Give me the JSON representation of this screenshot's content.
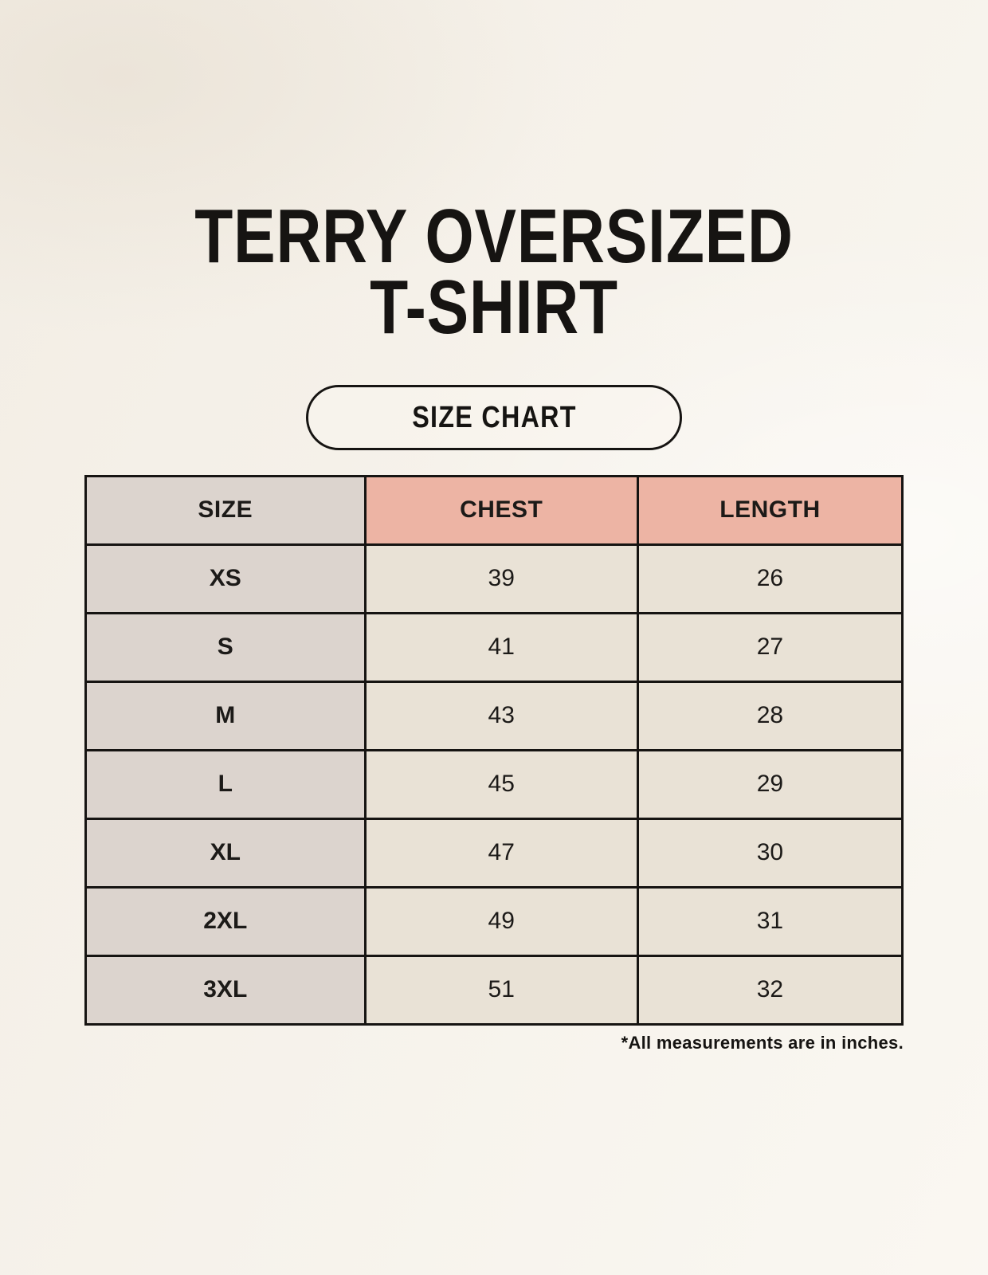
{
  "header": {
    "title_line1": "TERRY OVERSIZED",
    "title_line2": "T-SHIRT",
    "button_label": "SIZE CHART"
  },
  "chart_data": {
    "type": "table",
    "title": "TERRY OVERSIZED T-SHIRT SIZE CHART",
    "columns": [
      "SIZE",
      "CHEST",
      "LENGTH"
    ],
    "rows": [
      [
        "XS",
        "39",
        "26"
      ],
      [
        "S",
        "41",
        "27"
      ],
      [
        "M",
        "43",
        "28"
      ],
      [
        "L",
        "45",
        "29"
      ],
      [
        "XL",
        "47",
        "30"
      ],
      [
        "2XL",
        "49",
        "31"
      ],
      [
        "3XL",
        "51",
        "32"
      ]
    ],
    "units": "inches"
  },
  "footnote": "*All measurements are in inches.",
  "colors": {
    "background": "#f6f2eb",
    "header_accent": "#edb4a4",
    "size_column": "#dcd4ce",
    "data_cell": "#e9e2d6",
    "border": "#161412",
    "text": "#1c1a18"
  }
}
